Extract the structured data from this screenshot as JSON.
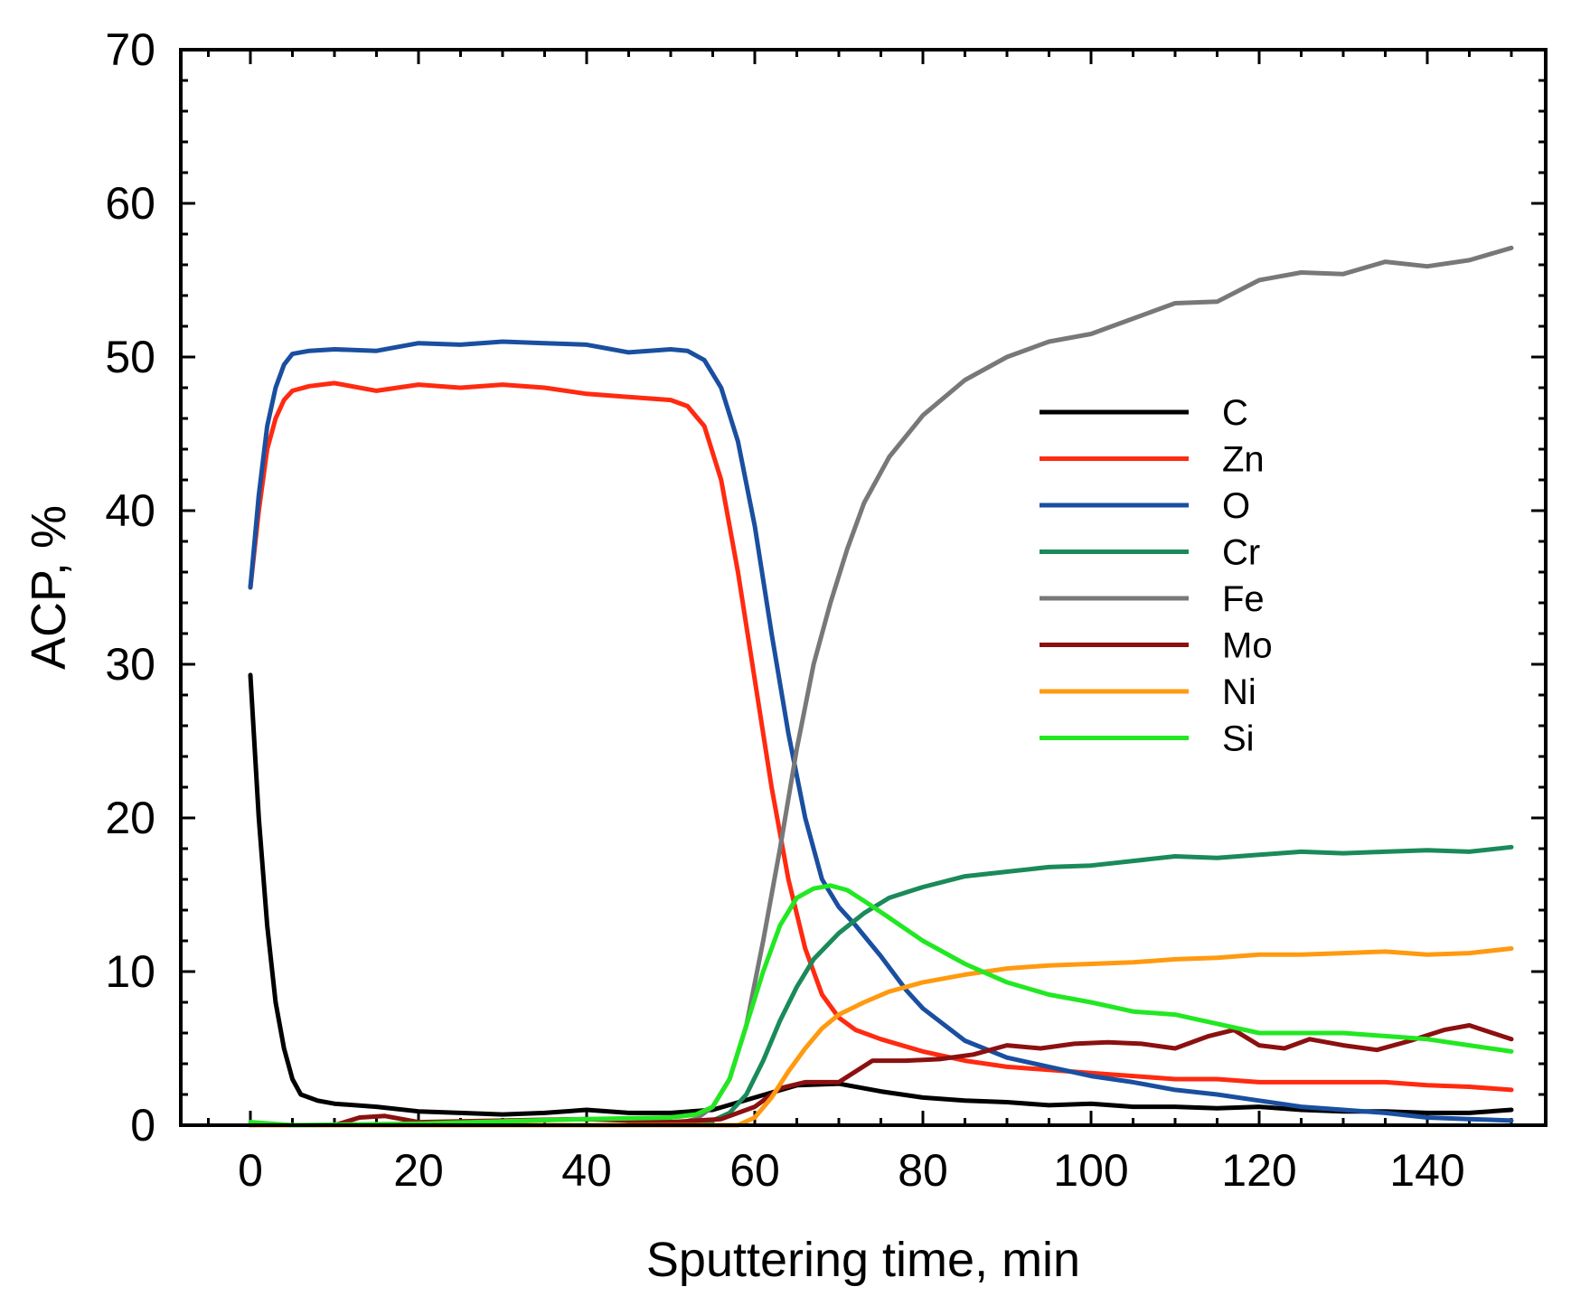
{
  "chart_data": {
    "type": "line",
    "title": "",
    "xlabel": "Sputtering time, min",
    "ylabel": "ACP, %",
    "xlim": [
      -10,
      155
    ],
    "ylim": [
      0,
      70
    ],
    "xticks": [
      0,
      20,
      40,
      60,
      80,
      100,
      120,
      140
    ],
    "yticks": [
      0,
      10,
      20,
      30,
      40,
      50,
      60,
      70
    ],
    "grid": false,
    "legend_position": "upper-right",
    "series": [
      {
        "name": "C",
        "color": "#000000",
        "points": [
          [
            0,
            29.3
          ],
          [
            1,
            20
          ],
          [
            2,
            13
          ],
          [
            3,
            8
          ],
          [
            4,
            5
          ],
          [
            5,
            3
          ],
          [
            6,
            2
          ],
          [
            8,
            1.6
          ],
          [
            10,
            1.4
          ],
          [
            15,
            1.2
          ],
          [
            20,
            0.9
          ],
          [
            25,
            0.8
          ],
          [
            30,
            0.7
          ],
          [
            35,
            0.8
          ],
          [
            40,
            1.0
          ],
          [
            45,
            0.8
          ],
          [
            50,
            0.8
          ],
          [
            55,
            1.0
          ],
          [
            60,
            1.8
          ],
          [
            65,
            2.6
          ],
          [
            70,
            2.7
          ],
          [
            75,
            2.2
          ],
          [
            80,
            1.8
          ],
          [
            85,
            1.6
          ],
          [
            90,
            1.5
          ],
          [
            95,
            1.3
          ],
          [
            100,
            1.4
          ],
          [
            105,
            1.2
          ],
          [
            110,
            1.2
          ],
          [
            115,
            1.1
          ],
          [
            120,
            1.2
          ],
          [
            125,
            1.0
          ],
          [
            130,
            0.9
          ],
          [
            135,
            0.9
          ],
          [
            140,
            0.8
          ],
          [
            145,
            0.8
          ],
          [
            150,
            1.0
          ]
        ]
      },
      {
        "name": "Zn",
        "color": "#ff2a10",
        "points": [
          [
            0,
            35
          ],
          [
            1,
            40
          ],
          [
            2,
            44
          ],
          [
            3,
            46
          ],
          [
            4,
            47.2
          ],
          [
            5,
            47.8
          ],
          [
            7,
            48.1
          ],
          [
            10,
            48.3
          ],
          [
            15,
            47.8
          ],
          [
            20,
            48.2
          ],
          [
            25,
            48.0
          ],
          [
            30,
            48.2
          ],
          [
            35,
            48.0
          ],
          [
            40,
            47.6
          ],
          [
            45,
            47.4
          ],
          [
            50,
            47.2
          ],
          [
            52,
            46.8
          ],
          [
            54,
            45.5
          ],
          [
            56,
            42
          ],
          [
            58,
            36
          ],
          [
            60,
            29
          ],
          [
            62,
            22
          ],
          [
            64,
            16
          ],
          [
            66,
            11.5
          ],
          [
            68,
            8.5
          ],
          [
            70,
            7.0
          ],
          [
            72,
            6.2
          ],
          [
            75,
            5.6
          ],
          [
            80,
            4.8
          ],
          [
            85,
            4.2
          ],
          [
            90,
            3.8
          ],
          [
            95,
            3.6
          ],
          [
            100,
            3.4
          ],
          [
            105,
            3.2
          ],
          [
            110,
            3.0
          ],
          [
            115,
            3.0
          ],
          [
            120,
            2.8
          ],
          [
            125,
            2.8
          ],
          [
            130,
            2.8
          ],
          [
            135,
            2.8
          ],
          [
            140,
            2.6
          ],
          [
            145,
            2.5
          ],
          [
            150,
            2.3
          ]
        ]
      },
      {
        "name": "O",
        "color": "#1a4fa0",
        "points": [
          [
            0,
            35
          ],
          [
            1,
            41
          ],
          [
            2,
            45.5
          ],
          [
            3,
            48
          ],
          [
            4,
            49.5
          ],
          [
            5,
            50.2
          ],
          [
            7,
            50.4
          ],
          [
            10,
            50.5
          ],
          [
            15,
            50.4
          ],
          [
            20,
            50.9
          ],
          [
            25,
            50.8
          ],
          [
            30,
            51.0
          ],
          [
            35,
            50.9
          ],
          [
            40,
            50.8
          ],
          [
            45,
            50.3
          ],
          [
            50,
            50.5
          ],
          [
            52,
            50.4
          ],
          [
            54,
            49.8
          ],
          [
            56,
            48
          ],
          [
            58,
            44.5
          ],
          [
            60,
            39
          ],
          [
            62,
            32
          ],
          [
            64,
            25.5
          ],
          [
            66,
            20
          ],
          [
            68,
            16
          ],
          [
            70,
            14.2
          ],
          [
            72,
            13
          ],
          [
            75,
            11
          ],
          [
            78,
            8.8
          ],
          [
            80,
            7.6
          ],
          [
            85,
            5.5
          ],
          [
            90,
            4.4
          ],
          [
            95,
            3.8
          ],
          [
            100,
            3.2
          ],
          [
            105,
            2.8
          ],
          [
            110,
            2.3
          ],
          [
            115,
            2.0
          ],
          [
            120,
            1.6
          ],
          [
            125,
            1.2
          ],
          [
            130,
            1.0
          ],
          [
            135,
            0.8
          ],
          [
            140,
            0.5
          ],
          [
            145,
            0.4
          ],
          [
            150,
            0.3
          ]
        ]
      },
      {
        "name": "Cr",
        "color": "#1a8a5a",
        "points": [
          [
            0,
            0
          ],
          [
            50,
            0
          ],
          [
            55,
            0.3
          ],
          [
            57,
            0.8
          ],
          [
            59,
            2
          ],
          [
            61,
            4.2
          ],
          [
            63,
            6.8
          ],
          [
            65,
            9
          ],
          [
            67,
            10.8
          ],
          [
            70,
            12.5
          ],
          [
            73,
            13.8
          ],
          [
            76,
            14.8
          ],
          [
            80,
            15.5
          ],
          [
            85,
            16.2
          ],
          [
            90,
            16.5
          ],
          [
            95,
            16.8
          ],
          [
            100,
            16.9
          ],
          [
            105,
            17.2
          ],
          [
            110,
            17.5
          ],
          [
            115,
            17.4
          ],
          [
            120,
            17.6
          ],
          [
            125,
            17.8
          ],
          [
            130,
            17.7
          ],
          [
            135,
            17.8
          ],
          [
            140,
            17.9
          ],
          [
            145,
            17.8
          ],
          [
            150,
            18.1
          ]
        ]
      },
      {
        "name": "Fe",
        "color": "#787878",
        "points": [
          [
            0,
            0
          ],
          [
            50,
            0
          ],
          [
            53,
            0.4
          ],
          [
            55,
            1.2
          ],
          [
            57,
            3
          ],
          [
            59,
            6.5
          ],
          [
            61,
            12
          ],
          [
            63,
            18
          ],
          [
            65,
            24.5
          ],
          [
            67,
            30
          ],
          [
            69,
            34
          ],
          [
            71,
            37.5
          ],
          [
            73,
            40.5
          ],
          [
            76,
            43.5
          ],
          [
            80,
            46.2
          ],
          [
            85,
            48.5
          ],
          [
            90,
            50
          ],
          [
            95,
            51
          ],
          [
            100,
            51.5
          ],
          [
            105,
            52.5
          ],
          [
            110,
            53.5
          ],
          [
            115,
            53.6
          ],
          [
            120,
            55
          ],
          [
            125,
            55.5
          ],
          [
            130,
            55.4
          ],
          [
            135,
            56.2
          ],
          [
            140,
            55.9
          ],
          [
            145,
            56.3
          ],
          [
            150,
            57.1
          ]
        ]
      },
      {
        "name": "Mo",
        "color": "#8c1010",
        "points": [
          [
            0,
            0
          ],
          [
            10,
            0
          ],
          [
            13,
            0.5
          ],
          [
            16,
            0.6
          ],
          [
            20,
            0.2
          ],
          [
            30,
            0.3
          ],
          [
            40,
            0.4
          ],
          [
            50,
            0.2
          ],
          [
            56,
            0.4
          ],
          [
            60,
            1.2
          ],
          [
            63,
            2.4
          ],
          [
            66,
            2.8
          ],
          [
            70,
            2.8
          ],
          [
            74,
            4.2
          ],
          [
            78,
            4.2
          ],
          [
            82,
            4.3
          ],
          [
            86,
            4.6
          ],
          [
            90,
            5.2
          ],
          [
            94,
            5.0
          ],
          [
            98,
            5.3
          ],
          [
            102,
            5.4
          ],
          [
            106,
            5.3
          ],
          [
            110,
            5.0
          ],
          [
            114,
            5.8
          ],
          [
            117,
            6.2
          ],
          [
            120,
            5.2
          ],
          [
            123,
            5.0
          ],
          [
            126,
            5.6
          ],
          [
            130,
            5.2
          ],
          [
            134,
            4.9
          ],
          [
            138,
            5.5
          ],
          [
            142,
            6.2
          ],
          [
            145,
            6.5
          ],
          [
            150,
            5.6
          ]
        ]
      },
      {
        "name": "Ni",
        "color": "#ff9a10",
        "points": [
          [
            0,
            0
          ],
          [
            58,
            0
          ],
          [
            60,
            0.5
          ],
          [
            62,
            1.8
          ],
          [
            64,
            3.5
          ],
          [
            66,
            5
          ],
          [
            68,
            6.3
          ],
          [
            70,
            7.2
          ],
          [
            73,
            8.0
          ],
          [
            76,
            8.7
          ],
          [
            80,
            9.3
          ],
          [
            85,
            9.8
          ],
          [
            90,
            10.2
          ],
          [
            95,
            10.4
          ],
          [
            100,
            10.5
          ],
          [
            105,
            10.6
          ],
          [
            110,
            10.8
          ],
          [
            115,
            10.9
          ],
          [
            120,
            11.1
          ],
          [
            125,
            11.1
          ],
          [
            130,
            11.2
          ],
          [
            135,
            11.3
          ],
          [
            140,
            11.1
          ],
          [
            145,
            11.2
          ],
          [
            150,
            11.5
          ]
        ]
      },
      {
        "name": "Si",
        "color": "#22e822",
        "points": [
          [
            0,
            0.2
          ],
          [
            5,
            0
          ],
          [
            20,
            0.1
          ],
          [
            40,
            0.4
          ],
          [
            50,
            0.5
          ],
          [
            53,
            0.7
          ],
          [
            55,
            1.2
          ],
          [
            57,
            3
          ],
          [
            59,
            6.5
          ],
          [
            61,
            10
          ],
          [
            63,
            13
          ],
          [
            65,
            14.8
          ],
          [
            67,
            15.4
          ],
          [
            69,
            15.6
          ],
          [
            71,
            15.3
          ],
          [
            73,
            14.6
          ],
          [
            76,
            13.5
          ],
          [
            80,
            12.0
          ],
          [
            85,
            10.5
          ],
          [
            90,
            9.3
          ],
          [
            95,
            8.5
          ],
          [
            100,
            8.0
          ],
          [
            105,
            7.4
          ],
          [
            110,
            7.2
          ],
          [
            115,
            6.6
          ],
          [
            120,
            6.0
          ],
          [
            125,
            6.0
          ],
          [
            130,
            6.0
          ],
          [
            135,
            5.8
          ],
          [
            140,
            5.6
          ],
          [
            145,
            5.2
          ],
          [
            150,
            4.8
          ]
        ]
      }
    ]
  }
}
